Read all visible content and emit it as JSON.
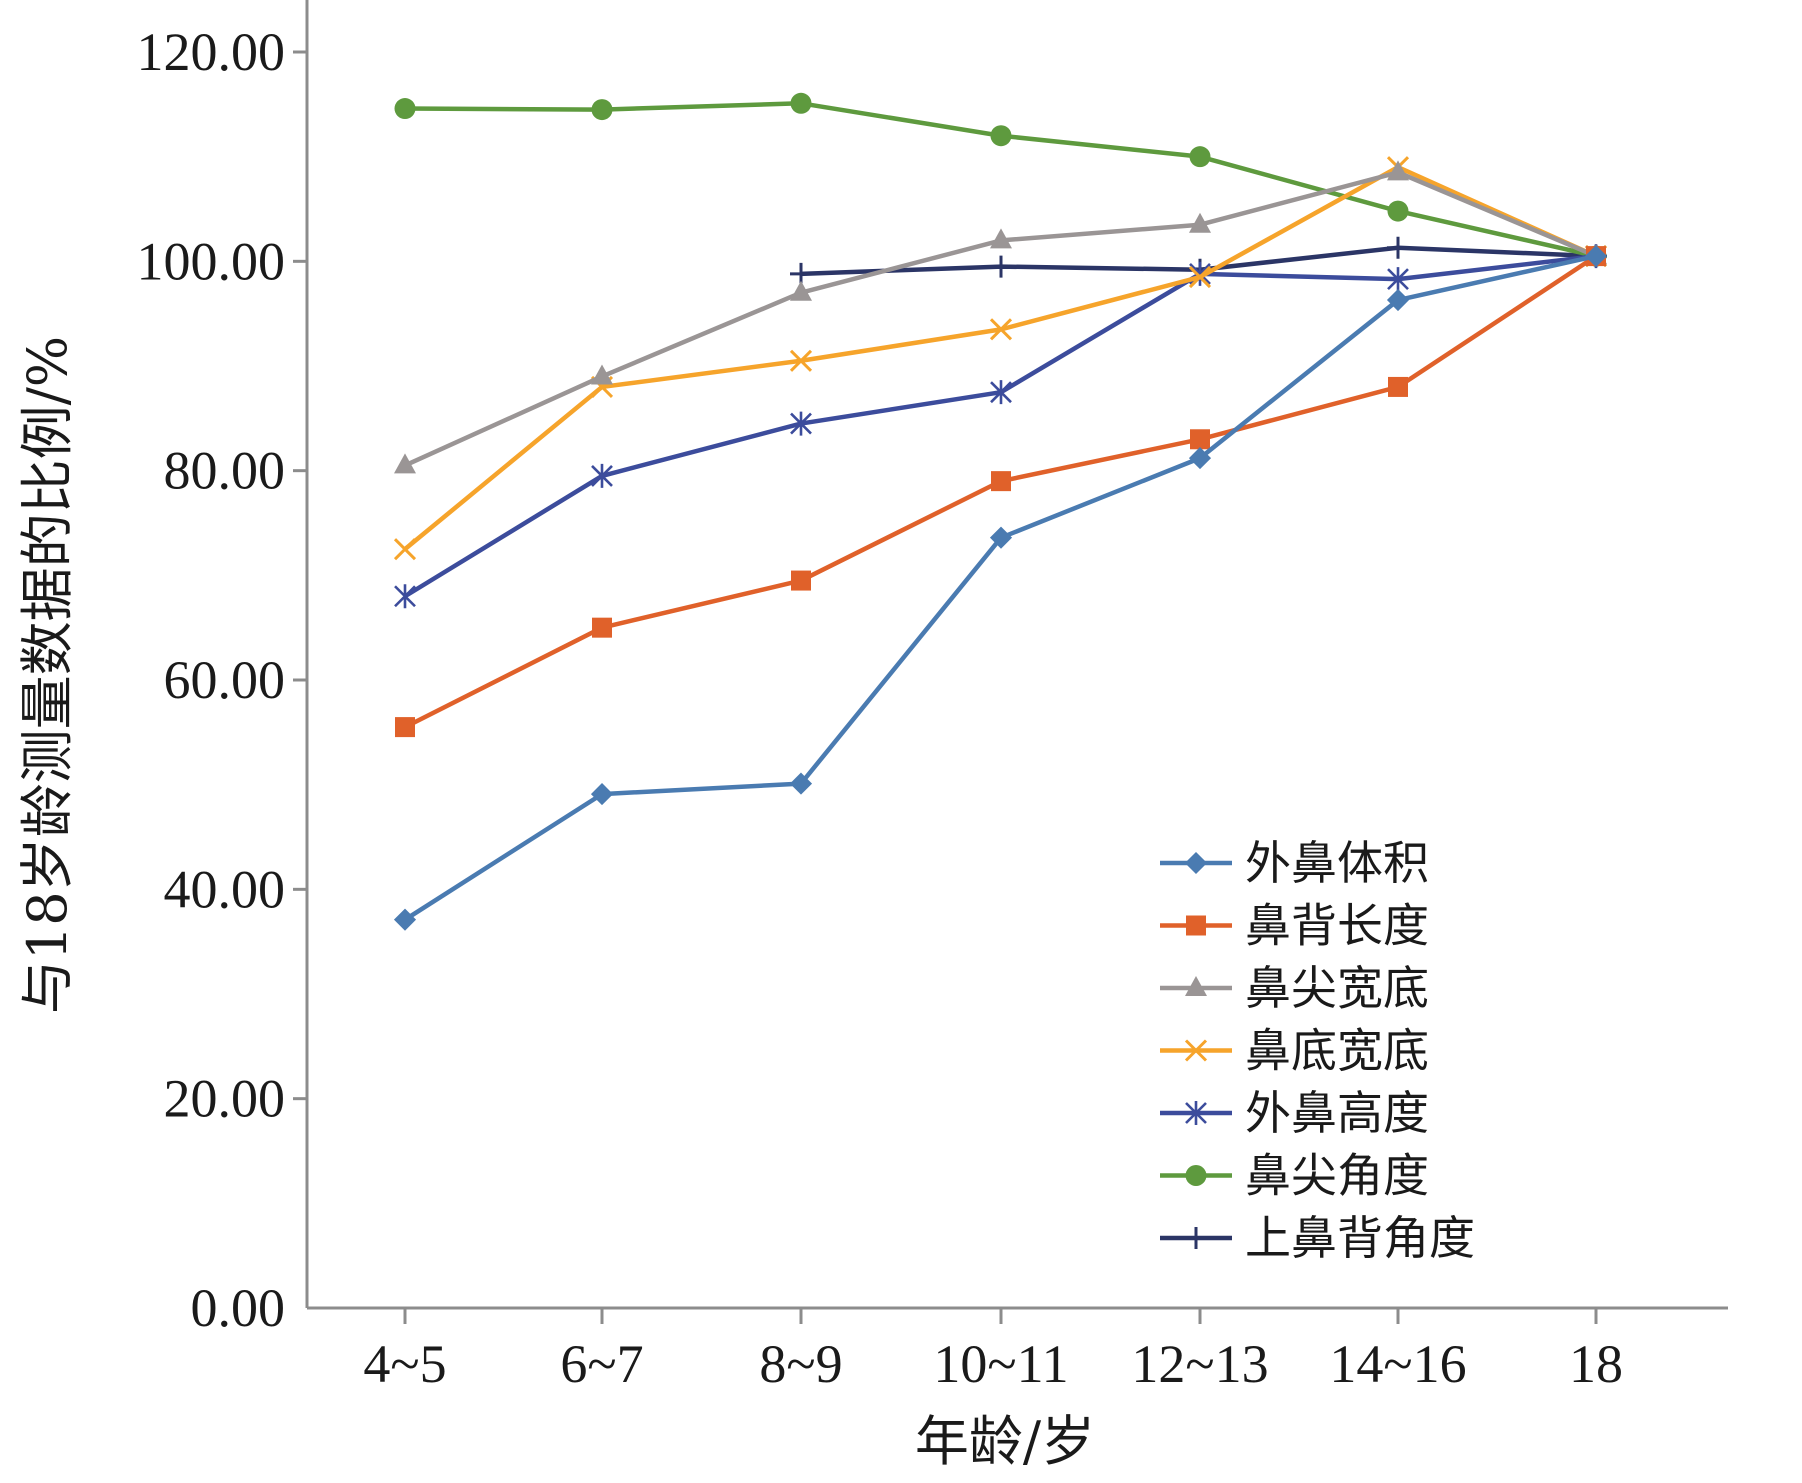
{
  "chart_data": {
    "type": "line",
    "xlabel": "年龄/岁",
    "ylabel": "与18岁龄测量数据的比例/%",
    "categories": [
      "4~5",
      "6~7",
      "8~9",
      "10~11",
      "12~13",
      "14~16",
      "18"
    ],
    "ylim": [
      0,
      120
    ],
    "yticks": [
      "0.00",
      "20.00",
      "40.00",
      "60.00",
      "80.00",
      "100.00",
      "120.00"
    ],
    "legend_position": "bottom-right",
    "grid": false,
    "series": [
      {
        "name": "外鼻体积",
        "color": "#4A7BB1",
        "marker": "diamond",
        "values": [
          37.1,
          49.1,
          50.1,
          73.6,
          81.2,
          96.3,
          100.5
        ]
      },
      {
        "name": "鼻背长度",
        "color": "#E0612A",
        "marker": "square",
        "values": [
          55.5,
          65.0,
          69.5,
          79.0,
          83.0,
          88.0,
          100.5
        ]
      },
      {
        "name": "鼻尖宽底",
        "color": "#9A9595",
        "marker": "triangle",
        "values": [
          80.5,
          89.0,
          97.0,
          102.0,
          103.5,
          108.5,
          100.5
        ]
      },
      {
        "name": "鼻底宽底",
        "color": "#F6A42B",
        "marker": "x",
        "values": [
          72.5,
          88.0,
          90.5,
          93.5,
          98.5,
          109.0,
          100.5
        ]
      },
      {
        "name": "外鼻高度",
        "color": "#3C4C9C",
        "marker": "asterisk",
        "values": [
          68.0,
          79.5,
          84.5,
          87.5,
          98.8,
          98.3,
          100.5
        ]
      },
      {
        "name": "鼻尖角度",
        "color": "#5E9A3E",
        "marker": "circle",
        "values": [
          114.6,
          114.5,
          115.1,
          112.0,
          110.0,
          104.8,
          100.5
        ]
      },
      {
        "name": "上鼻背角度",
        "color": "#2B3566",
        "marker": "plus",
        "values": [
          null,
          null,
          98.8,
          99.5,
          99.2,
          101.3,
          100.5
        ]
      }
    ]
  }
}
